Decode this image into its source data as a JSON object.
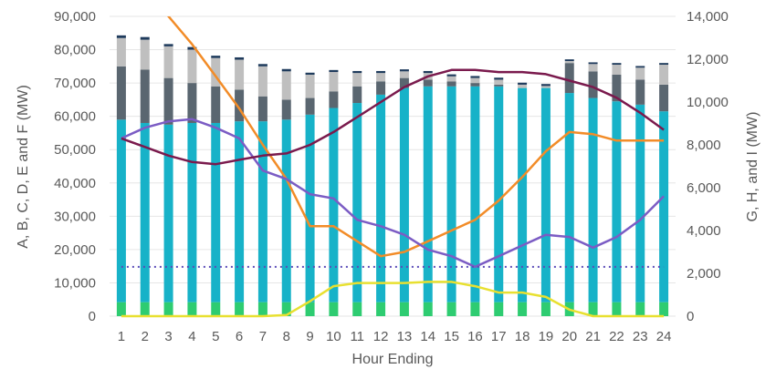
{
  "chart_data": {
    "type": "bar",
    "title": "",
    "xlabel": "Hour Ending",
    "ylabel_left": "A, B, C,  D, E and F (MW)",
    "ylabel_right": "G, H, and I (MW)",
    "categories": [
      "1",
      "2",
      "3",
      "4",
      "5",
      "6",
      "7",
      "8",
      "9",
      "10",
      "11",
      "12",
      "13",
      "14",
      "15",
      "16",
      "17",
      "18",
      "19",
      "20",
      "21",
      "22",
      "23",
      "24"
    ],
    "ylim_left": [
      0,
      90000
    ],
    "ylim_right": [
      0,
      14000
    ],
    "yticks_left": [
      "0",
      "10,000",
      "20,000",
      "30,000",
      "40,000",
      "50,000",
      "60,000",
      "70,000",
      "80,000",
      "90,000"
    ],
    "yticks_right": [
      "0",
      "2,000",
      "4,000",
      "6,000",
      "8,000",
      "10,000",
      "12,000",
      "14,000"
    ],
    "grid": true,
    "legend": "none",
    "stacked_series": [
      {
        "color": "#2ecc71",
        "values": [
          4200,
          4200,
          4200,
          4200,
          4200,
          4200,
          4200,
          4200,
          4200,
          4200,
          4200,
          4200,
          4200,
          4200,
          4200,
          4200,
          4200,
          4200,
          4200,
          4200,
          4200,
          4200,
          4200,
          4200
        ]
      },
      {
        "color": "#17b2c8",
        "values": [
          54800,
          53800,
          53300,
          53800,
          53800,
          54300,
          54300,
          54800,
          56300,
          58300,
          59800,
          62300,
          64300,
          64800,
          64800,
          64800,
          64800,
          64300,
          64300,
          62800,
          61300,
          60300,
          59300,
          57300
        ]
      },
      {
        "color": "#5a6670",
        "values": [
          16000,
          16000,
          14000,
          12000,
          11000,
          9500,
          7500,
          6000,
          5000,
          5000,
          5000,
          4000,
          3000,
          2000,
          1500,
          1000,
          500,
          0,
          0,
          9000,
          8000,
          8000,
          7500,
          8000
        ]
      },
      {
        "color": "#bfbfbf",
        "values": [
          8500,
          9000,
          9500,
          10000,
          8500,
          9000,
          9000,
          8500,
          7000,
          5800,
          4000,
          2500,
          2000,
          2000,
          1500,
          1500,
          1500,
          1000,
          600,
          600,
          2200,
          3000,
          3600,
          6000
        ]
      },
      {
        "color": "#1f3b5c",
        "values": [
          800,
          800,
          700,
          800,
          700,
          700,
          700,
          700,
          600,
          600,
          600,
          600,
          600,
          600,
          600,
          600,
          600,
          600,
          600,
          500,
          500,
          500,
          500,
          500
        ]
      }
    ],
    "line_series": [
      {
        "axis": "right",
        "color": "#f28c28",
        "dashed": false,
        "values": [
          null,
          null,
          14000,
          12700,
          11200,
          9700,
          8000,
          6400,
          4200,
          4200,
          3500,
          2800,
          3000,
          3500,
          4000,
          4500,
          5400,
          6500,
          7700,
          8600,
          8500,
          8200,
          8200,
          8200
        ]
      },
      {
        "axis": "right",
        "color": "#7b5cc4",
        "dashed": false,
        "values": [
          8300,
          8800,
          9100,
          9200,
          8800,
          8300,
          6800,
          6400,
          5700,
          5500,
          4500,
          4200,
          3800,
          3100,
          2800,
          2300,
          2800,
          3300,
          3800,
          3700,
          3200,
          3700,
          4500,
          5600
        ]
      },
      {
        "axis": "right",
        "color": "#7a1a4d",
        "dashed": false,
        "values": [
          8300,
          7900,
          7500,
          7200,
          7100,
          7300,
          7500,
          7600,
          8000,
          8600,
          9300,
          10000,
          10700,
          11200,
          11500,
          11500,
          11400,
          11400,
          11300,
          11000,
          10700,
          10200,
          9500,
          8700
        ]
      },
      {
        "axis": "right",
        "color": "#e8e030",
        "dashed": false,
        "values": [
          0,
          0,
          0,
          0,
          0,
          0,
          0,
          50,
          700,
          1400,
          1550,
          1550,
          1550,
          1600,
          1600,
          1400,
          1100,
          1100,
          900,
          300,
          0,
          0,
          0,
          0
        ]
      },
      {
        "axis": "right",
        "color": "#5a4ab8",
        "dashed": true,
        "values": [
          2300,
          2300,
          2300,
          2300,
          2300,
          2300,
          2300,
          2300,
          2300,
          2300,
          2300,
          2300,
          2300,
          2300,
          2300,
          2300,
          2300,
          2300,
          2300,
          2300,
          2300,
          2300,
          2300,
          2300
        ]
      }
    ]
  }
}
